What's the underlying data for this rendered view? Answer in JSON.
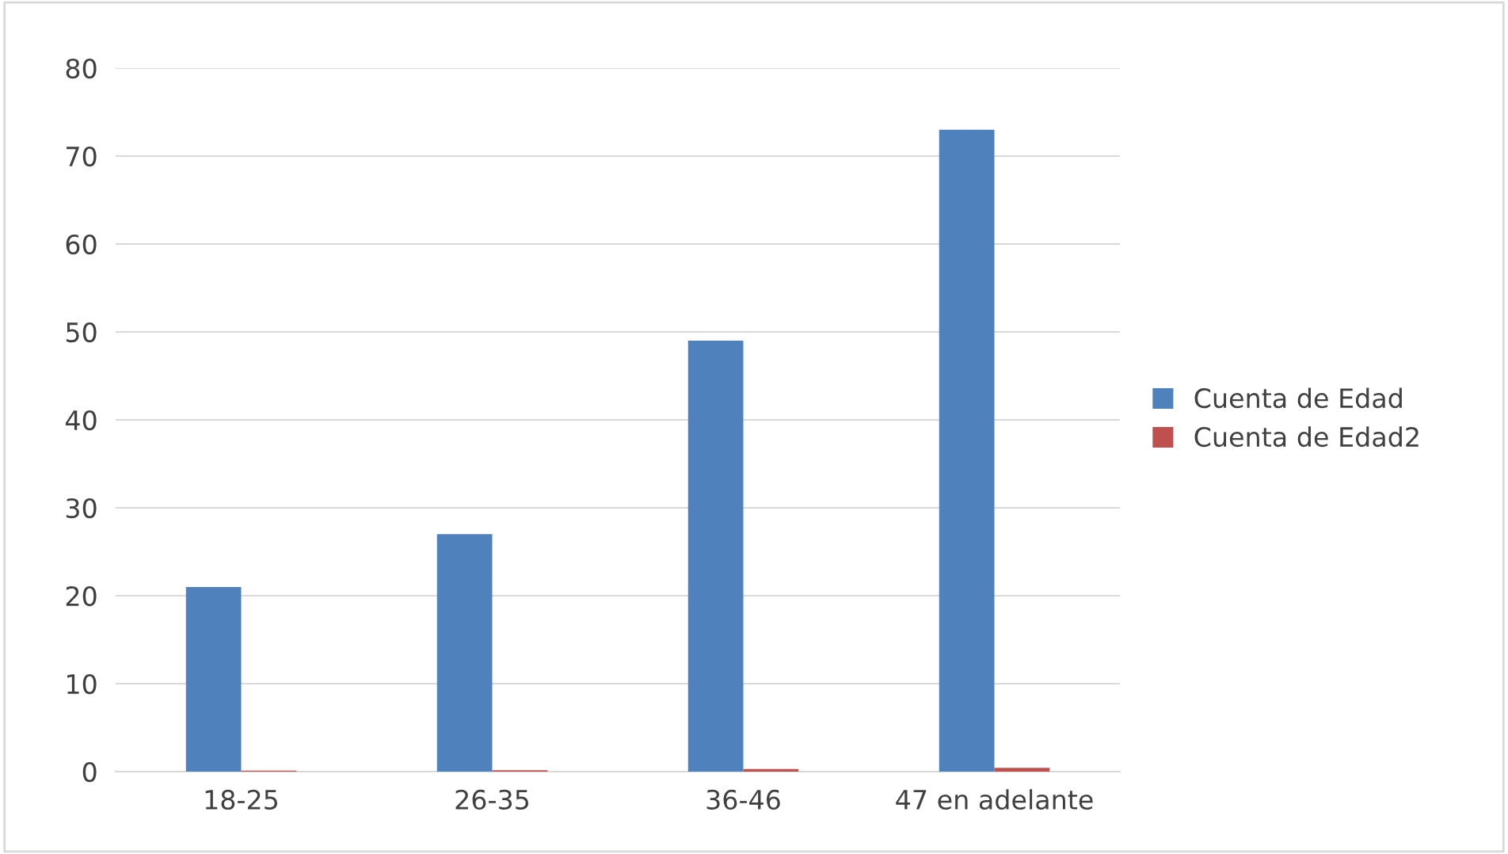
{
  "chart_data": {
    "type": "bar",
    "categories": [
      "18-25",
      "26-35",
      "36-46",
      "47 en adelante"
    ],
    "series": [
      {
        "name": "Cuenta de Edad",
        "color": "#4f81bd",
        "values": [
          21,
          27,
          49,
          73
        ]
      },
      {
        "name": "Cuenta de Edad2",
        "color": "#c0504d",
        "values": [
          0.12,
          0.16,
          0.29,
          0.43
        ]
      }
    ],
    "ylim": [
      0,
      80
    ],
    "yticks": [
      0,
      10,
      20,
      30,
      40,
      50,
      60,
      70,
      80
    ],
    "grid": "y",
    "legend": "right"
  }
}
